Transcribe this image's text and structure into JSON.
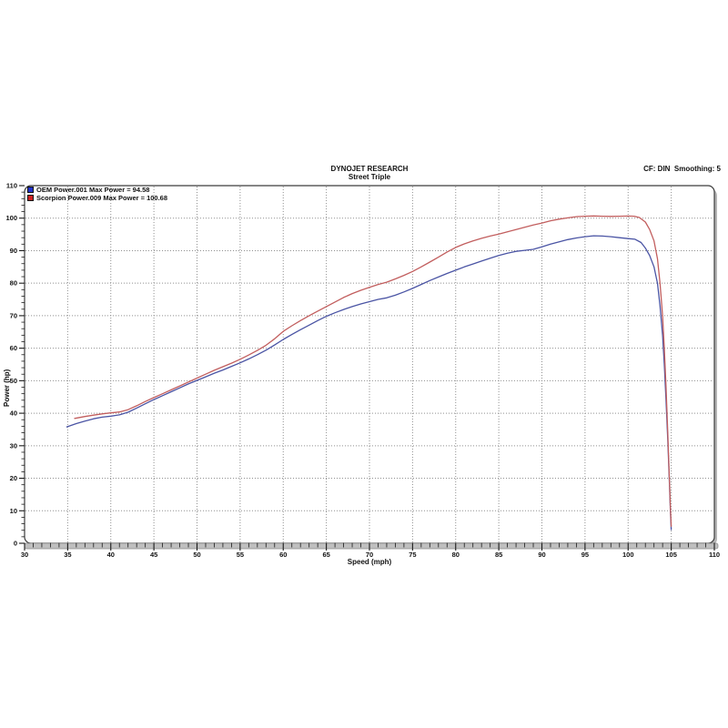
{
  "chart_data": {
    "type": "line",
    "title": "DYNOJET RESEARCH",
    "subtitle": "Street Triple",
    "annotation": "CF: DIN  Smoothing: 5",
    "xlabel": "Speed (mph)",
    "ylabel": "Power (hp)",
    "xlim": [
      30,
      110
    ],
    "ylim": [
      0,
      110
    ],
    "x_major_step": 5,
    "x_minor_step": 1,
    "y_major_step": 10,
    "y_minor_step": 2,
    "grid": "dotted",
    "legend_position": "top-left",
    "colors": {
      "grid": "#909090",
      "frame": "#3c3c3c",
      "shadow": "#b4b4b4",
      "axis_bar": "#bfbfbf",
      "tick": "#1a1a1a",
      "background": "#ffffff"
    },
    "series": [
      {
        "name": "OEM Power.001",
        "legend_label": "OEM Power.001 Max Power = 94.58",
        "max_power": 94.58,
        "line_color": "#4a54a4",
        "legend_color": "#2233cc",
        "points": [
          [
            34.9,
            35.8
          ],
          [
            36,
            36.8
          ],
          [
            37,
            37.6
          ],
          [
            38,
            38.3
          ],
          [
            39,
            38.8
          ],
          [
            40,
            39.1
          ],
          [
            41,
            39.5
          ],
          [
            42,
            40.3
          ],
          [
            43,
            41.6
          ],
          [
            44,
            42.9
          ],
          [
            45,
            44.2
          ],
          [
            46,
            45.4
          ],
          [
            47,
            46.6
          ],
          [
            48,
            47.8
          ],
          [
            49,
            49
          ],
          [
            50,
            50.1
          ],
          [
            51,
            51.2
          ],
          [
            52,
            52.3
          ],
          [
            53,
            53.3
          ],
          [
            54,
            54.4
          ],
          [
            55,
            55.5
          ],
          [
            56,
            56.7
          ],
          [
            57,
            58
          ],
          [
            58,
            59.4
          ],
          [
            59,
            61
          ],
          [
            60,
            62.7
          ],
          [
            61,
            64.2
          ],
          [
            62,
            65.7
          ],
          [
            63,
            67.1
          ],
          [
            64,
            68.5
          ],
          [
            65,
            69.8
          ],
          [
            66,
            70.9
          ],
          [
            67,
            71.9
          ],
          [
            68,
            72.8
          ],
          [
            69,
            73.6
          ],
          [
            70,
            74.3
          ],
          [
            71,
            75
          ],
          [
            72,
            75.5
          ],
          [
            73,
            76.3
          ],
          [
            74,
            77.3
          ],
          [
            75,
            78.4
          ],
          [
            76,
            79.6
          ],
          [
            77,
            80.8
          ],
          [
            78,
            81.9
          ],
          [
            79,
            83
          ],
          [
            80,
            84
          ],
          [
            81,
            85
          ],
          [
            82,
            85.9
          ],
          [
            83,
            86.8
          ],
          [
            84,
            87.7
          ],
          [
            85,
            88.5
          ],
          [
            86,
            89.2
          ],
          [
            87,
            89.8
          ],
          [
            88,
            90.1
          ],
          [
            89,
            90.4
          ],
          [
            90,
            91.2
          ],
          [
            91,
            92
          ],
          [
            92,
            92.7
          ],
          [
            93,
            93.4
          ],
          [
            94,
            93.9
          ],
          [
            95,
            94.3
          ],
          [
            96,
            94.58
          ],
          [
            97,
            94.5
          ],
          [
            98,
            94.3
          ],
          [
            99,
            94
          ],
          [
            100,
            93.7
          ],
          [
            100.8,
            93.5
          ],
          [
            101.5,
            92.5
          ],
          [
            102,
            90.8
          ],
          [
            102.5,
            88.5
          ],
          [
            103,
            85
          ],
          [
            103.4,
            80
          ],
          [
            103.7,
            73
          ],
          [
            104,
            64
          ],
          [
            104.2,
            55
          ],
          [
            104.4,
            44
          ],
          [
            104.6,
            32
          ],
          [
            104.8,
            18
          ],
          [
            104.9,
            10
          ],
          [
            105,
            4.2
          ]
        ]
      },
      {
        "name": "Scorpion Power.009",
        "legend_label": "Scorpion Power.009 Max Power = 100.68",
        "max_power": 100.68,
        "line_color": "#c25e5e",
        "legend_color": "#cc2222",
        "points": [
          [
            35.8,
            38.4
          ],
          [
            37,
            39
          ],
          [
            38,
            39.4
          ],
          [
            39,
            39.8
          ],
          [
            40,
            40.1
          ],
          [
            41,
            40.4
          ],
          [
            42,
            41.1
          ],
          [
            43,
            42.3
          ],
          [
            44,
            43.6
          ],
          [
            45,
            44.8
          ],
          [
            46,
            46
          ],
          [
            47,
            47.2
          ],
          [
            48,
            48.4
          ],
          [
            49,
            49.6
          ],
          [
            50,
            50.8
          ],
          [
            51,
            52
          ],
          [
            52,
            53.2
          ],
          [
            53,
            54.3
          ],
          [
            54,
            55.4
          ],
          [
            55,
            56.6
          ],
          [
            56,
            57.9
          ],
          [
            57,
            59.3
          ],
          [
            58,
            60.9
          ],
          [
            59,
            62.9
          ],
          [
            60,
            65.2
          ],
          [
            61,
            66.9
          ],
          [
            62,
            68.5
          ],
          [
            63,
            70
          ],
          [
            64,
            71.4
          ],
          [
            65,
            72.8
          ],
          [
            66,
            74.2
          ],
          [
            67,
            75.6
          ],
          [
            68,
            76.8
          ],
          [
            69,
            77.8
          ],
          [
            70,
            78.7
          ],
          [
            71,
            79.6
          ],
          [
            72,
            80.3
          ],
          [
            73,
            81.3
          ],
          [
            74,
            82.4
          ],
          [
            75,
            83.6
          ],
          [
            76,
            85
          ],
          [
            77,
            86.5
          ],
          [
            78,
            88
          ],
          [
            79,
            89.6
          ],
          [
            80,
            91
          ],
          [
            81,
            92.1
          ],
          [
            82,
            93
          ],
          [
            83,
            93.8
          ],
          [
            84,
            94.5
          ],
          [
            85,
            95.1
          ],
          [
            86,
            95.8
          ],
          [
            87,
            96.5
          ],
          [
            88,
            97.2
          ],
          [
            89,
            97.9
          ],
          [
            90,
            98.5
          ],
          [
            91,
            99.2
          ],
          [
            92,
            99.7
          ],
          [
            93,
            100.1
          ],
          [
            94,
            100.45
          ],
          [
            95,
            100.6
          ],
          [
            96,
            100.68
          ],
          [
            97,
            100.6
          ],
          [
            98,
            100.55
          ],
          [
            99,
            100.6
          ],
          [
            100,
            100.65
          ],
          [
            100.7,
            100.6
          ],
          [
            101.3,
            100.2
          ],
          [
            102,
            98.8
          ],
          [
            102.5,
            96.5
          ],
          [
            103,
            93
          ],
          [
            103.4,
            87.5
          ],
          [
            103.7,
            80
          ],
          [
            104,
            70
          ],
          [
            104.2,
            60
          ],
          [
            104.4,
            48
          ],
          [
            104.6,
            34
          ],
          [
            104.8,
            19
          ],
          [
            104.9,
            11
          ],
          [
            105,
            5.2
          ]
        ]
      }
    ]
  }
}
